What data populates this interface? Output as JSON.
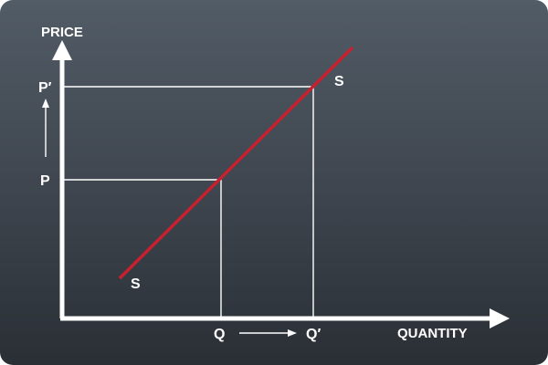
{
  "diagram": {
    "y_axis_label": "PRICE",
    "x_axis_label": "QUANTITY",
    "price_labels": {
      "initial": "P",
      "new": "P′"
    },
    "quantity_labels": {
      "initial": "Q",
      "new": "Q′"
    },
    "curve_labels": {
      "lower": "S",
      "upper": "S"
    },
    "colors": {
      "background_top": "#525c66",
      "background_bottom": "#2a2f35",
      "axis": "#ffffff",
      "guide_lines": "#ffffff",
      "supply_curve": "#c8202e",
      "text": "#ffffff"
    },
    "icons": {
      "price_increase": "up-arrow-icon",
      "quantity_increase": "right-arrow-icon"
    }
  }
}
